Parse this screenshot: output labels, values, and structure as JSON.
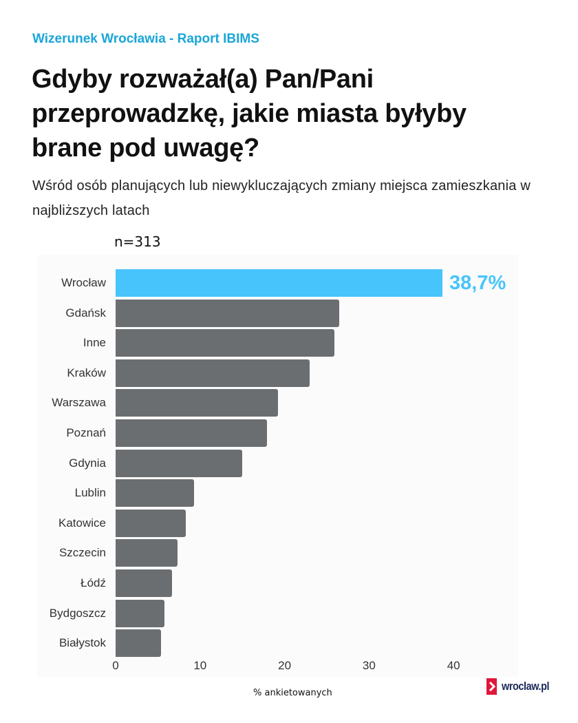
{
  "header": {
    "kicker": "Wizerunek Wrocławia - Raport IBIMS",
    "title": "Gdyby rozważał(a) Pan/Pani przeprowadzkę, jakie miasta byłyby brane pod uwagę?",
    "subtitle": "Wśród osób planujących lub niewykluczających zmiany miejsca zamieszkania w najbliższych latach"
  },
  "sample": "n=313",
  "logo": {
    "text": "wroclaw.pl",
    "icon": "chevron-right-icon"
  },
  "colors": {
    "highlight": "#48c4fc",
    "bar": "#6b6e71",
    "kicker": "#1aa6d8",
    "logo_red": "#e0173a",
    "logo_navy": "#1b2a5a"
  },
  "chart_data": {
    "type": "bar",
    "orientation": "horizontal",
    "title": "Gdyby rozważał(a) Pan/Pani przeprowadzkę, jakie miasta byłyby brane pod uwagę?",
    "subtitle": "Wśród osób planujących lub niewykluczających zmiany miejsca zamieszkania w najbliższych latach",
    "annotation": "n=313",
    "categories": [
      "Wrocław",
      "Gdańsk",
      "Inne",
      "Kraków",
      "Warszawa",
      "Poznań",
      "Gdynia",
      "Lublin",
      "Katowice",
      "Szczecin",
      "Łódź",
      "Bydgoszcz",
      "Białystok"
    ],
    "values": [
      38.7,
      26.5,
      25.9,
      23.0,
      19.2,
      17.9,
      15.0,
      9.3,
      8.3,
      7.3,
      6.7,
      5.8,
      5.4
    ],
    "data_labels": [
      {
        "category": "Wrocław",
        "text": "38,7%"
      }
    ],
    "highlight_category": "Wrocław",
    "xlabel": "% ankietowanych",
    "ylabel": "",
    "xticks": [
      "0",
      "10",
      "20",
      "30",
      "40"
    ],
    "xlim": [
      0,
      47.5
    ],
    "grid": false,
    "legend": null
  }
}
